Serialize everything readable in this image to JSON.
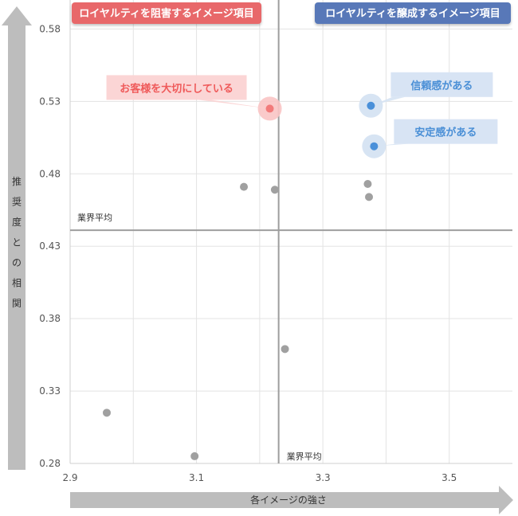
{
  "chart_data": {
    "type": "scatter",
    "xlabel": "各イメージの強さ",
    "ylabel": "推奨度との相関",
    "xlim": [
      2.9,
      3.6
    ],
    "ylim": [
      0.28,
      0.6
    ],
    "x_ticks": [
      "2.9",
      "3.1",
      "3.3",
      "3.5"
    ],
    "x_tick_values": [
      2.9,
      3.1,
      3.3,
      3.5
    ],
    "y_ticks": [
      "0.58",
      "0.53",
      "0.48",
      "0.43",
      "0.38",
      "0.33",
      "0.28"
    ],
    "y_tick_values": [
      0.58,
      0.53,
      0.48,
      0.43,
      0.38,
      0.33,
      0.28
    ],
    "grid": true,
    "average_x": 3.23,
    "average_y": 0.441,
    "average_label_h": "業界平均",
    "average_label_v": "業界平均",
    "quadrant_left_label": "ロイヤルティを阻害するイメージ項目",
    "quadrant_right_label": "ロイヤルティを醸成するイメージ項目",
    "colors": {
      "gray": "#a0a0a0",
      "red": "#f27a7a",
      "blue": "#4a90d9",
      "red_box": "#e8686a",
      "blue_box": "#5878b8"
    },
    "points": [
      {
        "x": 3.216,
        "y": 0.525,
        "color": "red",
        "label": "お客様を大切にしている"
      },
      {
        "x": 3.376,
        "y": 0.527,
        "color": "blue",
        "label": "信頼感がある"
      },
      {
        "x": 3.381,
        "y": 0.499,
        "color": "blue",
        "label": "安定感がある"
      },
      {
        "x": 3.175,
        "y": 0.471,
        "color": "gray",
        "label": ""
      },
      {
        "x": 3.224,
        "y": 0.469,
        "color": "gray",
        "label": ""
      },
      {
        "x": 3.371,
        "y": 0.473,
        "color": "gray",
        "label": ""
      },
      {
        "x": 3.373,
        "y": 0.464,
        "color": "gray",
        "label": ""
      },
      {
        "x": 3.24,
        "y": 0.359,
        "color": "gray",
        "label": ""
      },
      {
        "x": 2.958,
        "y": 0.315,
        "color": "gray",
        "label": ""
      },
      {
        "x": 3.097,
        "y": 0.285,
        "color": "gray",
        "label": ""
      }
    ]
  }
}
